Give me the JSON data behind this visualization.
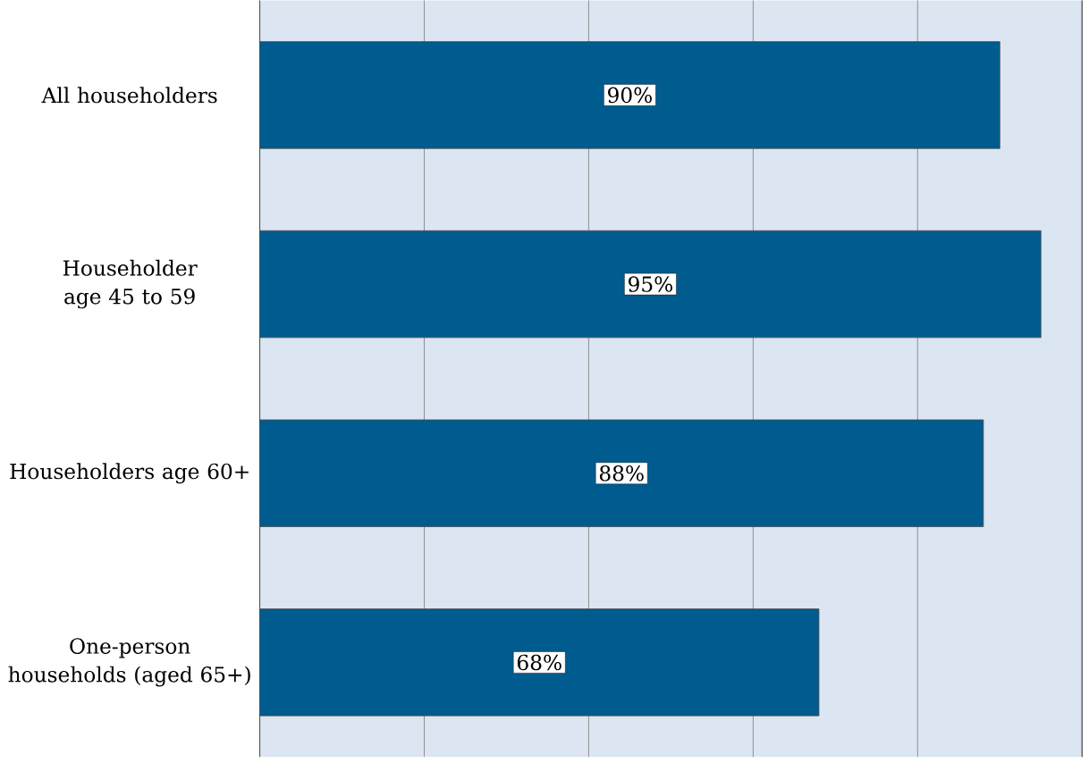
{
  "chart_data": {
    "type": "bar",
    "orientation": "horizontal",
    "categories": [
      "All householders",
      "Householder age 45 to 59",
      "Householders age 60+",
      "One-person households (aged 65+)"
    ],
    "values": [
      90,
      95,
      88,
      68
    ],
    "value_labels": [
      "90%",
      "95%",
      "88%",
      "68%"
    ],
    "color": "#005b8e",
    "xlim": [
      0,
      100
    ],
    "xticks": [
      {
        "value": 20,
        "label": null
      },
      {
        "value": 40,
        "label": null
      },
      {
        "value": 60,
        "label": null
      },
      {
        "value": 80,
        "label": null
      },
      {
        "value": 100,
        "label": null
      }
    ],
    "tick_labels": "y",
    "grid": "x"
  }
}
